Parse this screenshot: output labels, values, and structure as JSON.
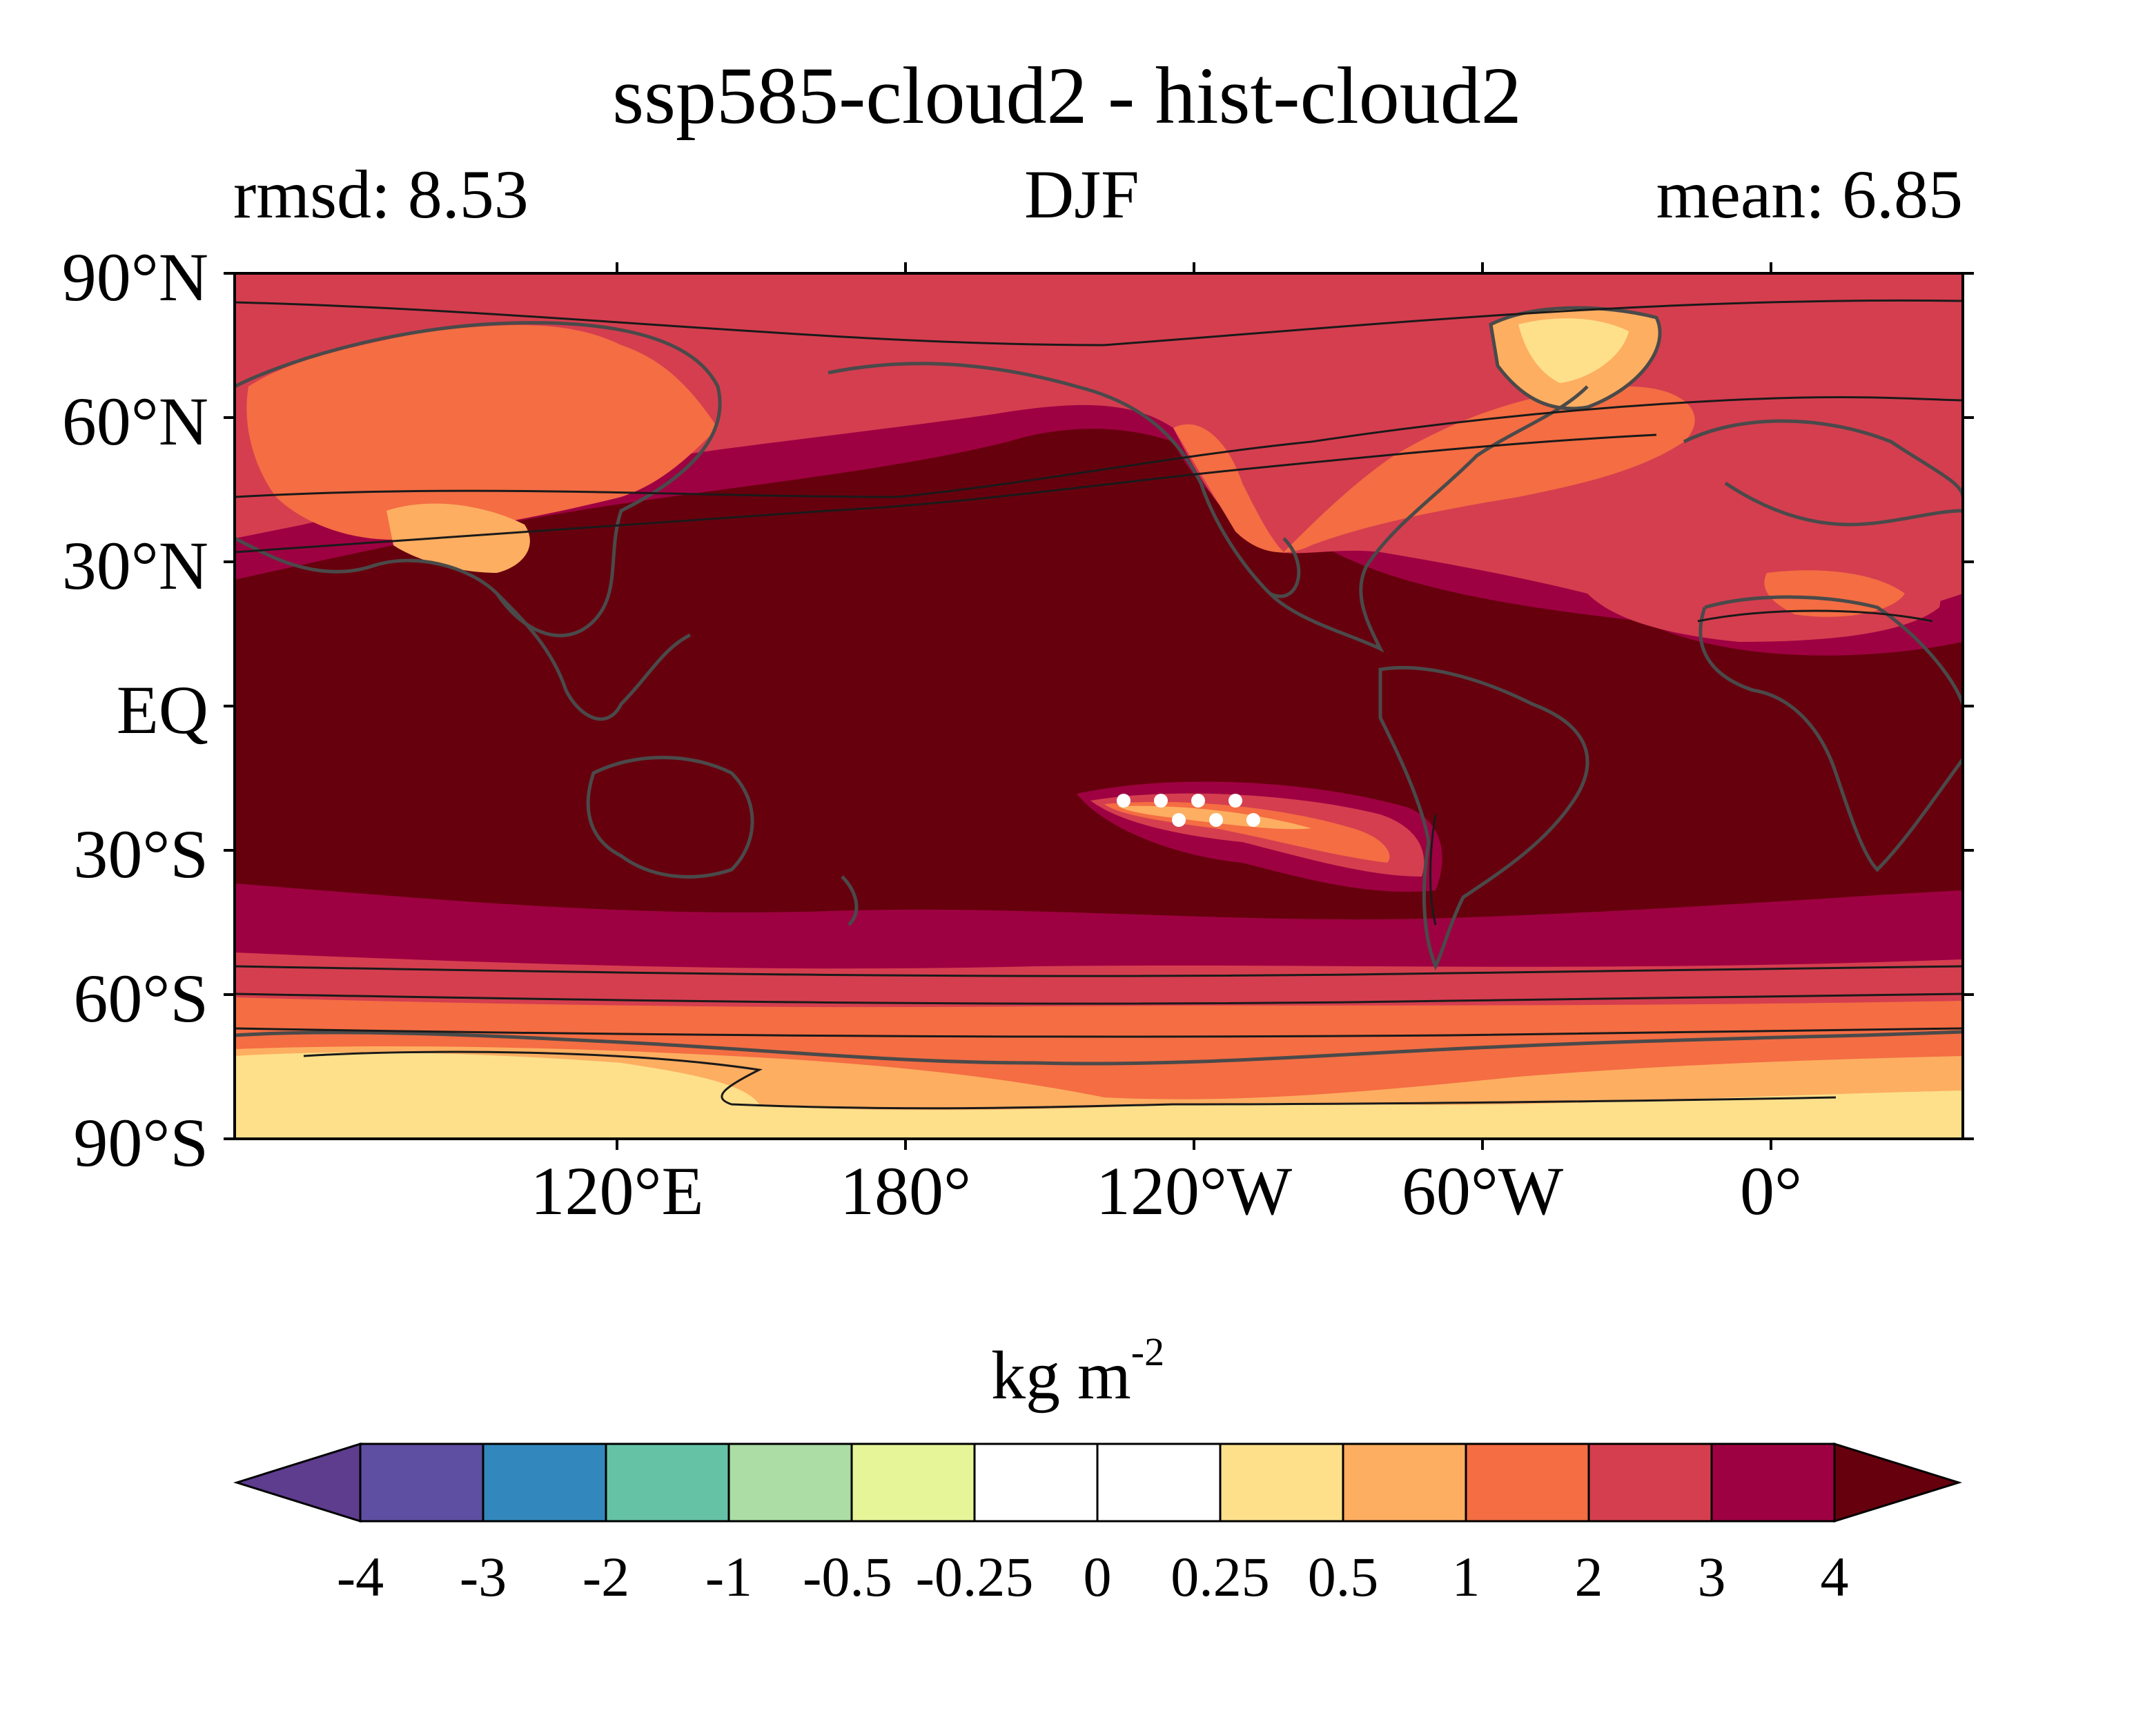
{
  "title": "ssp585-cloud2 - hist-cloud2",
  "subtitle": {
    "left": "rmsd: 8.53",
    "center": "DJF",
    "right": "mean: 6.85"
  },
  "map": {
    "projection": "PlateCarree, central longitude 180°",
    "lat_labels": [
      "90°N",
      "60°N",
      "30°N",
      "EQ",
      "30°S",
      "60°S",
      "90°S"
    ],
    "lon_labels": [
      "120°E",
      "180°",
      "120°W",
      "60°W",
      "0°"
    ],
    "colors": {
      "ocean_high": "#67000d",
      "band_3_4": "#9e0142",
      "band_2_3": "#d53e4f",
      "band_1_2": "#f46d43",
      "band_05_1": "#fdae61",
      "band_025_05": "#fee08b",
      "coastline": "#4a4a4a"
    }
  },
  "colorbar": {
    "units_base": "kg m",
    "units_exp": "-2",
    "ticks": [
      "-4",
      "-3",
      "-2",
      "-1",
      "-0.5",
      "-0.25",
      "0",
      "0.25",
      "0.5",
      "1",
      "2",
      "3",
      "4"
    ],
    "colors": [
      "#5e4fa2",
      "#3288bd",
      "#66c2a5",
      "#abdda4",
      "#e6f598",
      "#ffffff",
      "#ffffff",
      "#fee08b",
      "#fdae61",
      "#f46d43",
      "#d53e4f",
      "#9e0142"
    ],
    "under_color": "#5e3c8e",
    "over_color": "#67000d"
  }
}
